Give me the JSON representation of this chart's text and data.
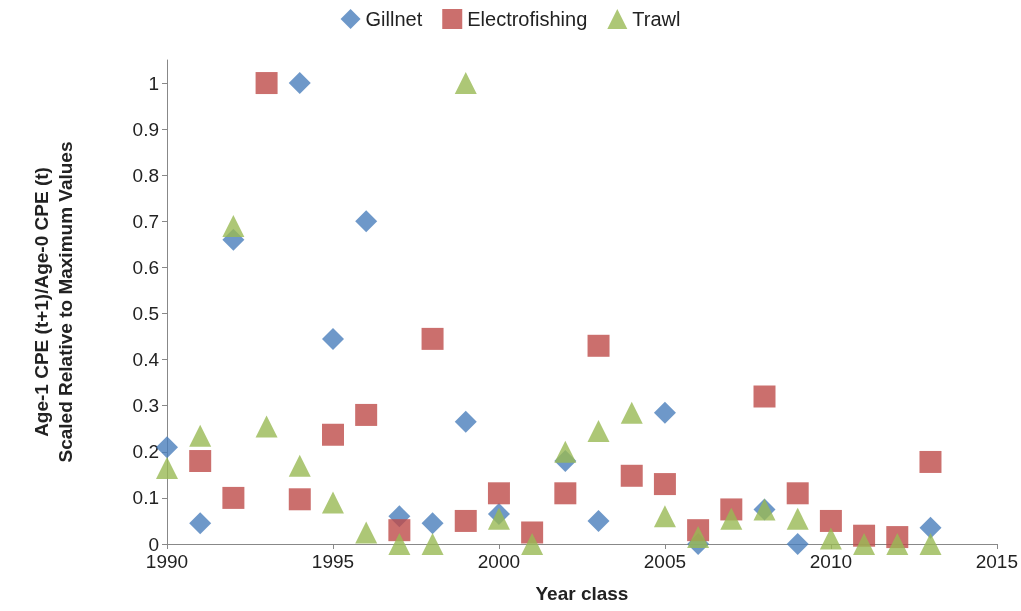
{
  "chart_data": {
    "type": "scatter",
    "xlabel": "Year class",
    "ylabel": "Age-1 CPE (t+1)/Age-0 CPE (t)\nScaled Relative to Maximum Values",
    "x": [
      1990,
      1991,
      1992,
      1993,
      1994,
      1995,
      1996,
      1997,
      1998,
      1999,
      2000,
      2001,
      2002,
      2003,
      2004,
      2005,
      2006,
      2007,
      2008,
      2009,
      2010,
      2011,
      2012,
      2013
    ],
    "series": [
      {
        "name": "Gillnet",
        "color": "#4a7ebb",
        "marker": "diamond",
        "values": [
          0.21,
          0.045,
          0.66,
          null,
          1.0,
          0.445,
          0.7,
          0.06,
          0.045,
          0.265,
          0.065,
          null,
          0.18,
          0.05,
          null,
          0.285,
          0.0,
          null,
          0.075,
          0.0,
          null,
          null,
          null,
          0.035
        ]
      },
      {
        "name": "Electrofishing",
        "color": "#be4b48",
        "marker": "square",
        "values": [
          null,
          0.18,
          0.1,
          1.0,
          0.097,
          0.237,
          0.28,
          0.03,
          0.445,
          0.05,
          0.11,
          0.025,
          0.11,
          0.43,
          0.148,
          0.13,
          0.03,
          0.075,
          0.32,
          0.11,
          0.05,
          0.018,
          0.015,
          0.178
        ]
      },
      {
        "name": "Trawl",
        "color": "#98b954",
        "marker": "triangle",
        "values": [
          0.165,
          0.235,
          0.69,
          0.255,
          0.17,
          0.09,
          0.025,
          0.0,
          0.0,
          1.0,
          0.055,
          0.0,
          0.2,
          0.245,
          0.285,
          0.06,
          0.015,
          0.055,
          0.075,
          0.055,
          0.012,
          0.0,
          0.0,
          0.0
        ]
      }
    ],
    "xlim": [
      1990,
      2015
    ],
    "xticks": [
      1990,
      1995,
      2000,
      2005,
      2010,
      2015
    ],
    "ylim": [
      0,
      1.05
    ],
    "yticks": [
      0,
      0.1,
      0.2,
      0.3,
      0.4,
      0.5,
      0.6,
      0.7,
      0.8,
      0.9,
      1
    ],
    "grid": false,
    "legend": "top"
  }
}
